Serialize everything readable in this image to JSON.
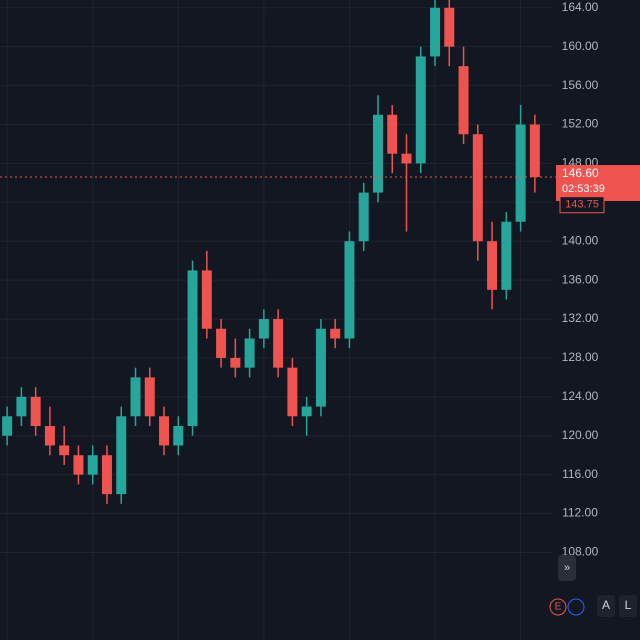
{
  "chart_data": {
    "type": "candlestick",
    "categories": [
      null,
      null,
      null,
      null,
      null,
      null,
      null,
      null,
      null,
      null,
      null,
      null,
      null,
      null,
      null,
      null,
      null,
      null,
      null,
      null,
      null,
      null,
      null,
      null,
      null,
      null,
      null,
      null,
      null,
      null,
      null,
      null,
      null,
      null,
      null,
      null,
      null,
      null
    ],
    "open": [
      120,
      122,
      124,
      121,
      119,
      118,
      116,
      118,
      114,
      122,
      126,
      122,
      119,
      121,
      137,
      131,
      128,
      127,
      130,
      132,
      127,
      122,
      123,
      131,
      130,
      140,
      145,
      153,
      149,
      148,
      159,
      164,
      158,
      151,
      140,
      135,
      142,
      152
    ],
    "high": [
      123,
      125,
      125,
      123,
      121,
      119,
      119,
      119,
      123,
      127,
      127,
      123,
      122,
      138,
      139,
      132,
      130,
      131,
      133,
      133,
      128,
      124,
      132,
      132,
      141,
      146,
      155,
      154,
      151,
      160,
      166,
      165,
      160,
      152,
      142,
      143,
      154,
      153
    ],
    "low": [
      119,
      121,
      120,
      118,
      117,
      115,
      115,
      113,
      113,
      121,
      121,
      118,
      118,
      120,
      130,
      127,
      126,
      126,
      129,
      126,
      121,
      120,
      122,
      129,
      129,
      139,
      144,
      147,
      141,
      147,
      158,
      158,
      150,
      138,
      133,
      134,
      141,
      145
    ],
    "close": [
      122,
      124,
      121,
      119,
      118,
      116,
      118,
      114,
      122,
      126,
      122,
      119,
      121,
      137,
      131,
      128,
      127,
      130,
      132,
      127,
      122,
      123,
      131,
      130,
      140,
      145,
      153,
      149,
      148,
      159,
      164,
      160,
      151,
      140,
      135,
      142,
      152,
      146.6
    ],
    "up_color": "#26a69a",
    "down_color": "#ef5350",
    "ylim": [
      99,
      164.8
    ],
    "yticks": [
      {
        "value": 108,
        "label": "108.00"
      },
      {
        "value": 112,
        "label": "112.00"
      },
      {
        "value": 116,
        "label": "116.00"
      },
      {
        "value": 120,
        "label": "120.00"
      },
      {
        "value": 124,
        "label": "124.00"
      },
      {
        "value": 128,
        "label": "128.00"
      },
      {
        "value": 132,
        "label": "132.00"
      },
      {
        "value": 136,
        "label": "136.00"
      },
      {
        "value": 140,
        "label": "140.00"
      },
      {
        "value": 144,
        "label": "144.00"
      },
      {
        "value": 148,
        "label": "148.00"
      },
      {
        "value": 152,
        "label": "152.00"
      },
      {
        "value": 156,
        "label": "156.00"
      },
      {
        "value": 160,
        "label": "160.00"
      },
      {
        "value": 164,
        "label": "164.00"
      }
    ],
    "grid": true,
    "last_price": {
      "value": 146.6,
      "label": "146.60"
    },
    "countdown": "02:53:39",
    "prev_close": {
      "value": 143.75,
      "label": "143.75"
    }
  },
  "controls": {
    "buttons": [
      "E",
      "A",
      "L"
    ]
  }
}
